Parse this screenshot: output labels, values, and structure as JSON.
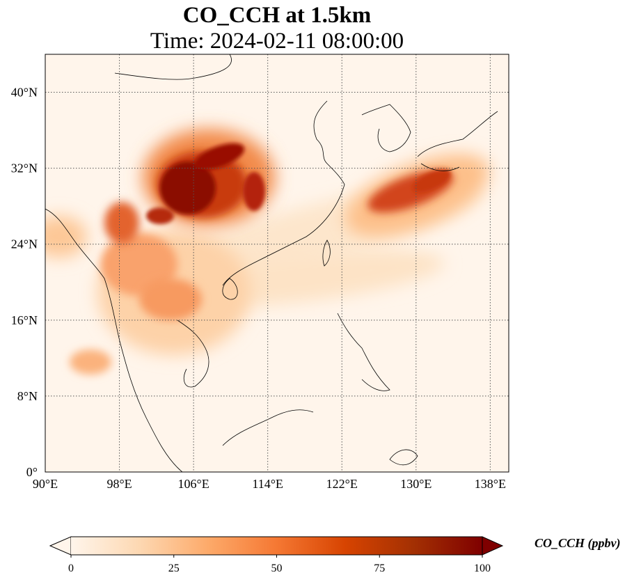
{
  "title": "CO_CCH at 1.5km",
  "subtitle": "Time: 2024-02-11 08:00:00",
  "map": {
    "lon_range": [
      90,
      140
    ],
    "lat_range": [
      0,
      44
    ],
    "lon_ticks": [
      "90°E",
      "98°E",
      "106°E",
      "114°E",
      "122°E",
      "130°E",
      "138°E"
    ],
    "lat_ticks": [
      "0°",
      "8°N",
      "16°N",
      "24°N",
      "32°N",
      "40°N"
    ],
    "gridlines": true,
    "background_color": "#fff5eb"
  },
  "colorbar": {
    "label": "CO_CCH (ppbv)",
    "min": 0,
    "max": 100,
    "ticks": [
      "0",
      "25",
      "50",
      "75",
      "100"
    ],
    "extend": "both",
    "colors": [
      "#fff5eb",
      "#fdd8b2",
      "#fdaa6a",
      "#f57833",
      "#d74401",
      "#a33003",
      "#7f0000"
    ]
  }
}
